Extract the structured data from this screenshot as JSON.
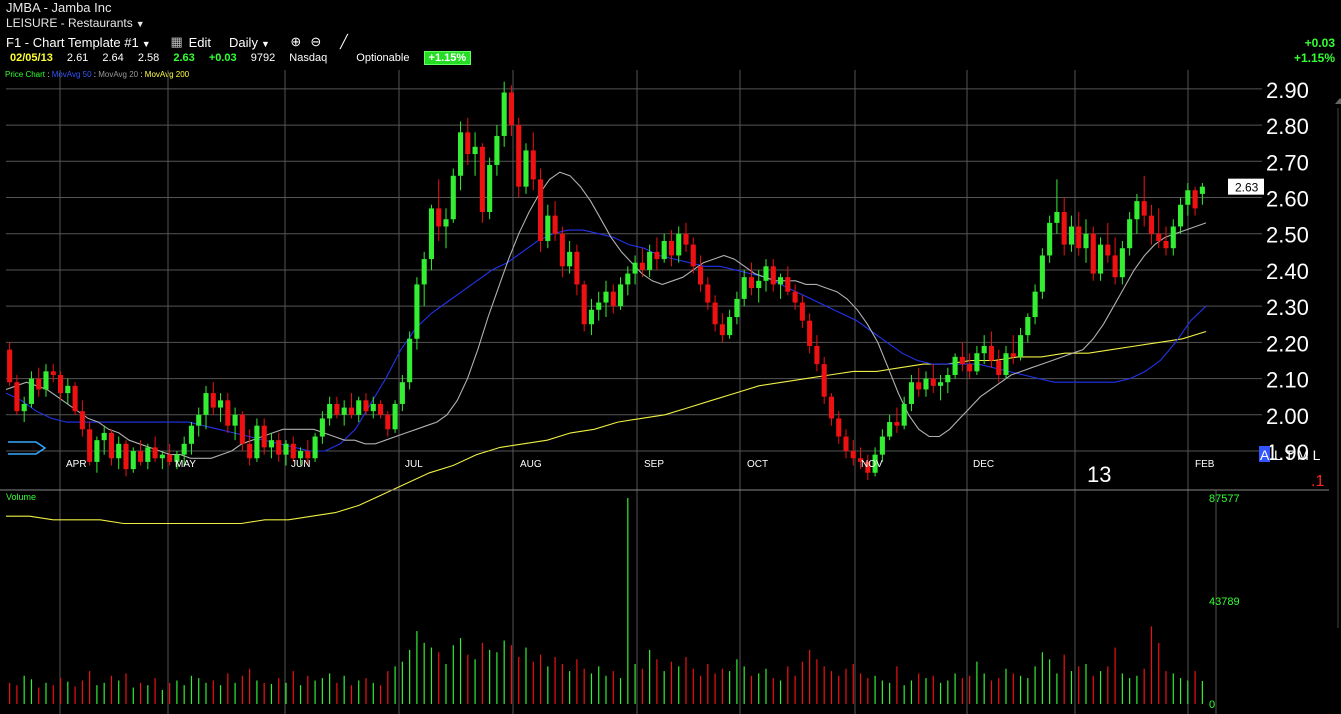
{
  "header": {
    "title": "JMBA - Jamba Inc",
    "sector": "LEISURE - Restaurants",
    "template_label": "F1 - Chart Template #1",
    "edit_label": "Edit",
    "period_label": "Daily",
    "quote": {
      "date": "02/05/13",
      "open": "2.61",
      "high": "2.64",
      "low": "2.58",
      "last": "2.63",
      "change": "+0.03",
      "volume": "9792",
      "exchange": "Nasdaq",
      "optionable": "Optionable",
      "change_pct_badge": "+1.15%"
    },
    "right_change": "+0.03",
    "right_change_pct": "+1.15%"
  },
  "legend": {
    "price_chart": "Price Chart",
    "ma50": "MovAvg 50",
    "ma20": "MovAvg 20",
    "ma200": "MovAvg 200"
  },
  "colors": {
    "up": "#33ee33",
    "down": "#ee1111",
    "ma20": "#b0b0b0",
    "ma50": "#2233ee",
    "ma200": "#eeee44",
    "grid": "#555555"
  },
  "icons": [
    "zoom-in-icon",
    "zoom-out-icon",
    "draw-line-icon",
    "dropdown-caret-icon",
    "flag-marker-icon"
  ],
  "chart_data": {
    "type": "candlestick",
    "price_axis": {
      "ticks": [
        "2.90",
        "2.80",
        "2.70",
        "2.60",
        "2.50",
        "2.40",
        "2.30",
        "2.20",
        "2.10",
        "2.00",
        "1.90"
      ],
      "min": 1.82,
      "max": 2.93,
      "current_label": "2.63",
      "current_value": 2.63
    },
    "months": [
      "APR",
      "MAY",
      "JUN",
      "JUL",
      "AUG",
      "SEP",
      "OCT",
      "NOV",
      "DEC",
      "FEB"
    ],
    "year_label": "13",
    "corner_labels": {
      "a": "A",
      "ltml": "L T M L",
      "one": ".1"
    },
    "ohlc": [
      [
        2.18,
        2.2,
        2.08,
        2.09
      ],
      [
        2.09,
        2.11,
        2.0,
        2.01
      ],
      [
        2.01,
        2.05,
        1.98,
        2.03
      ],
      [
        2.03,
        2.12,
        2.02,
        2.1
      ],
      [
        2.1,
        2.13,
        2.05,
        2.07
      ],
      [
        2.07,
        2.14,
        2.05,
        2.12
      ],
      [
        2.12,
        2.14,
        2.09,
        2.11
      ],
      [
        2.11,
        2.12,
        2.04,
        2.06
      ],
      [
        2.06,
        2.1,
        2.03,
        2.08
      ],
      [
        2.08,
        2.09,
        2.0,
        2.01
      ],
      [
        2.01,
        2.04,
        1.94,
        1.96
      ],
      [
        1.96,
        1.98,
        1.86,
        1.87
      ],
      [
        1.87,
        1.94,
        1.84,
        1.93
      ],
      [
        1.93,
        1.97,
        1.89,
        1.95
      ],
      [
        1.95,
        1.96,
        1.86,
        1.88
      ],
      [
        1.88,
        1.94,
        1.85,
        1.92
      ],
      [
        1.92,
        1.93,
        1.83,
        1.85
      ],
      [
        1.85,
        1.91,
        1.84,
        1.9
      ],
      [
        1.9,
        1.93,
        1.86,
        1.87
      ],
      [
        1.87,
        1.92,
        1.85,
        1.91
      ],
      [
        1.91,
        1.94,
        1.87,
        1.88
      ],
      [
        1.88,
        1.9,
        1.85,
        1.89
      ],
      [
        1.89,
        1.92,
        1.86,
        1.87
      ],
      [
        1.87,
        1.9,
        1.85,
        1.89
      ],
      [
        1.89,
        1.94,
        1.86,
        1.92
      ],
      [
        1.92,
        1.98,
        1.89,
        1.97
      ],
      [
        1.97,
        2.02,
        1.94,
        2.0
      ],
      [
        2.0,
        2.08,
        1.96,
        2.06
      ],
      [
        2.06,
        2.09,
        2.0,
        2.02
      ],
      [
        2.02,
        2.06,
        1.98,
        2.04
      ],
      [
        2.04,
        2.06,
        1.95,
        1.97
      ],
      [
        1.97,
        2.02,
        1.93,
        2.0
      ],
      [
        2.0,
        2.01,
        1.9,
        1.92
      ],
      [
        1.92,
        1.96,
        1.86,
        1.88
      ],
      [
        1.88,
        1.99,
        1.87,
        1.97
      ],
      [
        1.97,
        1.99,
        1.89,
        1.91
      ],
      [
        1.91,
        1.95,
        1.88,
        1.93
      ],
      [
        1.93,
        1.95,
        1.87,
        1.89
      ],
      [
        1.89,
        1.93,
        1.86,
        1.92
      ],
      [
        1.92,
        1.94,
        1.87,
        1.88
      ],
      [
        1.88,
        1.91,
        1.86,
        1.9
      ],
      [
        1.9,
        1.93,
        1.86,
        1.88
      ],
      [
        1.88,
        1.95,
        1.87,
        1.94
      ],
      [
        1.94,
        2.01,
        1.92,
        1.99
      ],
      [
        1.99,
        2.05,
        1.97,
        2.03
      ],
      [
        2.03,
        2.05,
        1.99,
        2.0
      ],
      [
        2.0,
        2.04,
        1.97,
        2.02
      ],
      [
        2.02,
        2.06,
        1.99,
        2.0
      ],
      [
        2.0,
        2.05,
        1.98,
        2.04
      ],
      [
        2.04,
        2.06,
        2.0,
        2.01
      ],
      [
        2.01,
        2.05,
        1.99,
        2.03
      ],
      [
        2.03,
        2.04,
        1.99,
        2.0
      ],
      [
        2.0,
        2.01,
        1.94,
        1.96
      ],
      [
        1.96,
        2.04,
        1.95,
        2.03
      ],
      [
        2.03,
        2.11,
        2.01,
        2.09
      ],
      [
        2.09,
        2.23,
        2.07,
        2.21
      ],
      [
        2.21,
        2.38,
        2.18,
        2.36
      ],
      [
        2.36,
        2.45,
        2.3,
        2.43
      ],
      [
        2.43,
        2.58,
        2.4,
        2.57
      ],
      [
        2.57,
        2.65,
        2.48,
        2.52
      ],
      [
        2.52,
        2.57,
        2.46,
        2.54
      ],
      [
        2.54,
        2.68,
        2.53,
        2.66
      ],
      [
        2.66,
        2.81,
        2.62,
        2.78
      ],
      [
        2.78,
        2.82,
        2.69,
        2.72
      ],
      [
        2.72,
        2.78,
        2.66,
        2.74
      ],
      [
        2.74,
        2.75,
        2.53,
        2.56
      ],
      [
        2.56,
        2.71,
        2.54,
        2.69
      ],
      [
        2.69,
        2.8,
        2.66,
        2.77
      ],
      [
        2.77,
        2.92,
        2.74,
        2.89
      ],
      [
        2.89,
        2.91,
        2.77,
        2.8
      ],
      [
        2.8,
        2.82,
        2.6,
        2.63
      ],
      [
        2.63,
        2.75,
        2.61,
        2.73
      ],
      [
        2.73,
        2.78,
        2.62,
        2.65
      ],
      [
        2.65,
        2.68,
        2.45,
        2.48
      ],
      [
        2.48,
        2.58,
        2.46,
        2.55
      ],
      [
        2.55,
        2.59,
        2.48,
        2.5
      ],
      [
        2.5,
        2.52,
        2.38,
        2.41
      ],
      [
        2.41,
        2.48,
        2.39,
        2.45
      ],
      [
        2.45,
        2.47,
        2.33,
        2.36
      ],
      [
        2.36,
        2.37,
        2.23,
        2.25
      ],
      [
        2.25,
        2.32,
        2.22,
        2.29
      ],
      [
        2.29,
        2.34,
        2.26,
        2.31
      ],
      [
        2.31,
        2.37,
        2.27,
        2.34
      ],
      [
        2.34,
        2.36,
        2.28,
        2.3
      ],
      [
        2.3,
        2.38,
        2.29,
        2.36
      ],
      [
        2.36,
        2.41,
        2.33,
        2.39
      ],
      [
        2.39,
        2.44,
        2.36,
        2.42
      ],
      [
        2.42,
        2.46,
        2.38,
        2.4
      ],
      [
        2.4,
        2.47,
        2.38,
        2.45
      ],
      [
        2.45,
        2.49,
        2.4,
        2.43
      ],
      [
        2.43,
        2.5,
        2.42,
        2.48
      ],
      [
        2.48,
        2.51,
        2.41,
        2.44
      ],
      [
        2.44,
        2.52,
        2.42,
        2.5
      ],
      [
        2.5,
        2.53,
        2.45,
        2.47
      ],
      [
        2.47,
        2.49,
        2.39,
        2.41
      ],
      [
        2.41,
        2.44,
        2.34,
        2.36
      ],
      [
        2.36,
        2.38,
        2.29,
        2.31
      ],
      [
        2.31,
        2.33,
        2.23,
        2.25
      ],
      [
        2.25,
        2.28,
        2.2,
        2.22
      ],
      [
        2.22,
        2.29,
        2.21,
        2.27
      ],
      [
        2.27,
        2.34,
        2.25,
        2.32
      ],
      [
        2.32,
        2.4,
        2.3,
        2.38
      ],
      [
        2.38,
        2.42,
        2.33,
        2.35
      ],
      [
        2.35,
        2.4,
        2.31,
        2.37
      ],
      [
        2.37,
        2.43,
        2.34,
        2.41
      ],
      [
        2.41,
        2.43,
        2.34,
        2.36
      ],
      [
        2.36,
        2.39,
        2.32,
        2.38
      ],
      [
        2.38,
        2.41,
        2.33,
        2.34
      ],
      [
        2.34,
        2.36,
        2.29,
        2.31
      ],
      [
        2.31,
        2.33,
        2.24,
        2.26
      ],
      [
        2.26,
        2.28,
        2.17,
        2.19
      ],
      [
        2.19,
        2.22,
        2.12,
        2.14
      ],
      [
        2.14,
        2.16,
        2.03,
        2.05
      ],
      [
        2.05,
        2.06,
        1.97,
        1.99
      ],
      [
        1.99,
        2.01,
        1.92,
        1.94
      ],
      [
        1.94,
        1.96,
        1.88,
        1.9
      ],
      [
        1.9,
        1.93,
        1.86,
        1.88
      ],
      [
        1.88,
        1.91,
        1.85,
        1.87
      ],
      [
        1.87,
        1.89,
        1.82,
        1.84
      ],
      [
        1.84,
        1.91,
        1.83,
        1.89
      ],
      [
        1.89,
        1.96,
        1.87,
        1.94
      ],
      [
        1.94,
        2.0,
        1.93,
        1.98
      ],
      [
        1.98,
        2.02,
        1.95,
        1.97
      ],
      [
        1.97,
        2.05,
        1.96,
        2.03
      ],
      [
        2.03,
        2.11,
        2.01,
        2.09
      ],
      [
        2.09,
        2.13,
        2.05,
        2.07
      ],
      [
        2.07,
        2.12,
        2.05,
        2.1
      ],
      [
        2.1,
        2.14,
        2.06,
        2.08
      ],
      [
        2.08,
        2.11,
        2.04,
        2.09
      ],
      [
        2.09,
        2.13,
        2.06,
        2.11
      ],
      [
        2.11,
        2.17,
        2.1,
        2.16
      ],
      [
        2.16,
        2.2,
        2.12,
        2.14
      ],
      [
        2.14,
        2.17,
        2.1,
        2.12
      ],
      [
        2.12,
        2.19,
        2.11,
        2.17
      ],
      [
        2.17,
        2.22,
        2.14,
        2.19
      ],
      [
        2.19,
        2.23,
        2.13,
        2.15
      ],
      [
        2.15,
        2.18,
        2.09,
        2.11
      ],
      [
        2.11,
        2.19,
        2.1,
        2.17
      ],
      [
        2.17,
        2.22,
        2.14,
        2.16
      ],
      [
        2.16,
        2.24,
        2.15,
        2.22
      ],
      [
        2.22,
        2.28,
        2.2,
        2.27
      ],
      [
        2.27,
        2.36,
        2.25,
        2.34
      ],
      [
        2.34,
        2.46,
        2.32,
        2.44
      ],
      [
        2.44,
        2.55,
        2.42,
        2.53
      ],
      [
        2.53,
        2.65,
        2.5,
        2.56
      ],
      [
        2.56,
        2.6,
        2.44,
        2.47
      ],
      [
        2.47,
        2.55,
        2.45,
        2.52
      ],
      [
        2.52,
        2.56,
        2.44,
        2.46
      ],
      [
        2.46,
        2.54,
        2.42,
        2.5
      ],
      [
        2.5,
        2.52,
        2.37,
        2.39
      ],
      [
        2.39,
        2.49,
        2.37,
        2.47
      ],
      [
        2.47,
        2.53,
        2.42,
        2.44
      ],
      [
        2.44,
        2.49,
        2.36,
        2.38
      ],
      [
        2.38,
        2.48,
        2.36,
        2.46
      ],
      [
        2.46,
        2.56,
        2.44,
        2.54
      ],
      [
        2.54,
        2.61,
        2.5,
        2.59
      ],
      [
        2.59,
        2.66,
        2.52,
        2.55
      ],
      [
        2.55,
        2.58,
        2.47,
        2.5
      ],
      [
        2.5,
        2.57,
        2.46,
        2.48
      ],
      [
        2.48,
        2.52,
        2.44,
        2.46
      ],
      [
        2.46,
        2.54,
        2.44,
        2.52
      ],
      [
        2.52,
        2.6,
        2.5,
        2.58
      ],
      [
        2.58,
        2.64,
        2.55,
        2.62
      ],
      [
        2.62,
        2.63,
        2.55,
        2.57
      ],
      [
        2.61,
        2.64,
        2.58,
        2.63
      ]
    ],
    "moving_averages": {
      "ma20": [
        2.07,
        2.08,
        2.09,
        2.08,
        2.07,
        2.05,
        2.03,
        2.01,
        1.99,
        1.98,
        1.96,
        1.95,
        1.93,
        1.92,
        1.91,
        1.9,
        1.89,
        1.89,
        1.88,
        1.88,
        1.88,
        1.89,
        1.9,
        1.92,
        1.93,
        1.94,
        1.95,
        1.96,
        1.96,
        1.96,
        1.96,
        1.95,
        1.94,
        1.93,
        1.93,
        1.92,
        1.92,
        1.93,
        1.94,
        1.95,
        1.96,
        1.97,
        1.98,
        2.0,
        2.04,
        2.1,
        2.18,
        2.27,
        2.35,
        2.43,
        2.5,
        2.56,
        2.61,
        2.65,
        2.67,
        2.66,
        2.63,
        2.59,
        2.54,
        2.49,
        2.45,
        2.42,
        2.39,
        2.37,
        2.36,
        2.37,
        2.38,
        2.4,
        2.42,
        2.43,
        2.44,
        2.43,
        2.41,
        2.39,
        2.38,
        2.37,
        2.37,
        2.37,
        2.36,
        2.36,
        2.35,
        2.34,
        2.32,
        2.29,
        2.25,
        2.2,
        2.13,
        2.06,
        2.0,
        1.96,
        1.94,
        1.94,
        1.96,
        1.99,
        2.02,
        2.05,
        2.07,
        2.09,
        2.11,
        2.12,
        2.13,
        2.14,
        2.15,
        2.16,
        2.17,
        2.18,
        2.21,
        2.25,
        2.3,
        2.35,
        2.4,
        2.44,
        2.47,
        2.49,
        2.5,
        2.51,
        2.52,
        2.53
      ],
      "ma50": [
        2.06,
        2.04,
        2.01,
        1.99,
        1.98,
        1.98,
        1.98,
        1.98,
        1.98,
        1.98,
        1.98,
        1.98,
        1.98,
        1.97,
        1.96,
        1.95,
        1.94,
        1.93,
        1.92,
        1.91,
        1.9,
        1.9,
        1.92,
        1.96,
        2.03,
        2.1,
        2.18,
        2.24,
        2.28,
        2.31,
        2.34,
        2.37,
        2.4,
        2.42,
        2.45,
        2.48,
        2.5,
        2.51,
        2.51,
        2.5,
        2.49,
        2.47,
        2.46,
        2.44,
        2.43,
        2.42,
        2.41,
        2.41,
        2.4,
        2.39,
        2.38,
        2.36,
        2.34,
        2.32,
        2.3,
        2.28,
        2.26,
        2.23,
        2.2,
        2.17,
        2.15,
        2.14,
        2.14,
        2.14,
        2.14,
        2.13,
        2.12,
        2.11,
        2.1,
        2.09,
        2.09,
        2.09,
        2.09,
        2.09,
        2.1,
        2.12,
        2.15,
        2.2,
        2.26,
        2.3
      ],
      "ma200": [
        1.72,
        1.72,
        1.71,
        1.71,
        1.71,
        1.7,
        1.7,
        1.7,
        1.7,
        1.7,
        1.7,
        1.71,
        1.71,
        1.72,
        1.73,
        1.75,
        1.78,
        1.81,
        1.84,
        1.86,
        1.89,
        1.91,
        1.92,
        1.93,
        1.95,
        1.96,
        1.98,
        1.99,
        2.0,
        2.02,
        2.04,
        2.06,
        2.08,
        2.09,
        2.1,
        2.11,
        2.12,
        2.12,
        2.13,
        2.14,
        2.14,
        2.15,
        2.15,
        2.16,
        2.16,
        2.17,
        2.17,
        2.18,
        2.19,
        2.2,
        2.21,
        2.23
      ]
    },
    "volume_axis": {
      "ticks": [
        "87577",
        "43789",
        "0"
      ],
      "max": 87577
    },
    "volume_label": "Volume",
    "volume": [
      9000,
      8000,
      12000,
      10500,
      7000,
      9000,
      8000,
      11000,
      9500,
      7500,
      10000,
      14000,
      8000,
      9000,
      12000,
      10000,
      13000,
      7000,
      9000,
      8000,
      11000,
      6000,
      9000,
      10000,
      8000,
      12000,
      11000,
      9000,
      10000,
      8000,
      13000,
      9000,
      12000,
      15000,
      10000,
      9000,
      8500,
      11000,
      9000,
      14000,
      8000,
      12000,
      10000,
      11000,
      13000,
      9000,
      12000,
      8000,
      10000,
      11000,
      9000,
      8000,
      14000,
      16000,
      18000,
      23000,
      31000,
      26000,
      24000,
      22000,
      17000,
      25000,
      28000,
      21000,
      19000,
      26000,
      23000,
      22000,
      27000,
      25000,
      20000,
      24000,
      18000,
      21000,
      16000,
      20000,
      17000,
      14000,
      19000,
      15000,
      13000,
      16000,
      12000,
      14000,
      11000,
      87577,
      17000,
      15000,
      23000,
      19000,
      14000,
      18000,
      16000,
      20000,
      15000,
      12000,
      17000,
      13000,
      15000,
      14000,
      19000,
      16000,
      12000,
      13000,
      15000,
      11000,
      10000,
      16000,
      12000,
      18000,
      23000,
      19000,
      16000,
      14000,
      12000,
      15000,
      17000,
      13000,
      11000,
      12000,
      10000,
      9000,
      16000,
      8000,
      10000,
      13000,
      11000,
      12000,
      9000,
      10000,
      13000,
      11000,
      12000,
      18000,
      13000,
      10000,
      11000,
      15000,
      13000,
      12000,
      11000,
      16000,
      22000,
      19000,
      13000,
      21000,
      14000,
      16000,
      17000,
      12000,
      14000,
      16000,
      24000,
      13000,
      11000,
      12000,
      15000,
      33000,
      26000,
      14000,
      13000,
      11000,
      10000,
      14000,
      9792
    ]
  }
}
